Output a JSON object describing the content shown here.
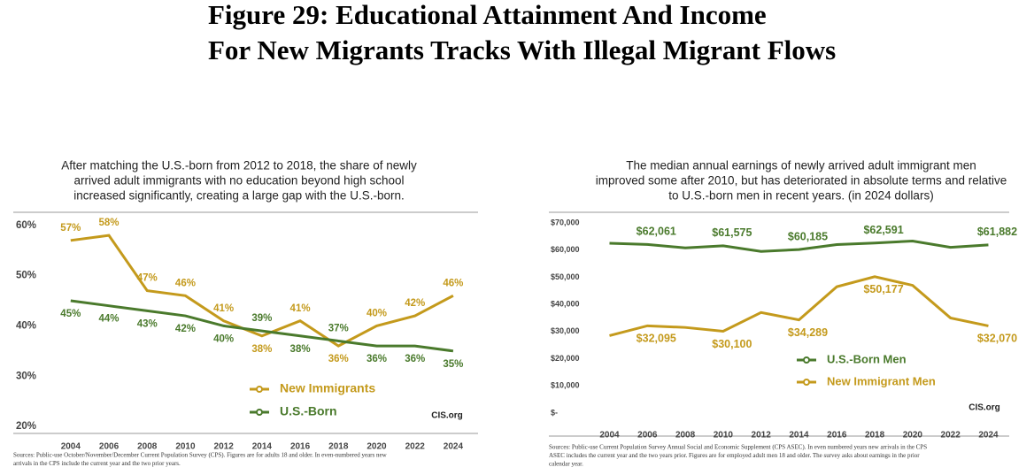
{
  "title": [
    "Figure 29: Educational Attainment And Income",
    "For New Migrants Tracks With Illegal Migrant Flows"
  ],
  "chart_data": [
    {
      "type": "line",
      "title": [
        "After matching the U.S.-born from 2012 to 2018, the share of newly",
        "arrived adult immigrants with no education beyond high school",
        "increased significantly, creating a large gap with the U.S.-born."
      ],
      "x": [
        2004,
        2006,
        2008,
        2010,
        2012,
        2014,
        2016,
        2018,
        2020,
        2022,
        2024
      ],
      "xlim": [
        2001,
        2025.3
      ],
      "xticks": [
        2004,
        2006,
        2008,
        2010,
        2012,
        2014,
        2016,
        2018,
        2020,
        2022,
        2024
      ],
      "ylim": [
        18.6,
        62.6
      ],
      "yticks": [
        {
          "value": 20,
          "label": "20%"
        },
        {
          "value": 30,
          "label": "30%"
        },
        {
          "value": 40,
          "label": "40%"
        },
        {
          "value": 50,
          "label": "50%"
        },
        {
          "value": 60,
          "label": "60%"
        }
      ],
      "series": [
        {
          "name": "New Immigrants",
          "color": "#c49a1c",
          "values": [
            57,
            58,
            47,
            46,
            41,
            38,
            41,
            36,
            40,
            42,
            46
          ],
          "value_labels": [
            "57%",
            "58%",
            "47%",
            "46%",
            "41%",
            "38%",
            "41%",
            "36%",
            "40%",
            "42%",
            "46%"
          ]
        },
        {
          "name": "U.S.-Born",
          "color": "#4a7a2c",
          "values": [
            45,
            44,
            43,
            42,
            40,
            39,
            38,
            37,
            36,
            36,
            35
          ],
          "value_labels": [
            "45%",
            "44%",
            "43%",
            "42%",
            "40%",
            "39%",
            "38%",
            "37%",
            "36%",
            "36%",
            "35%"
          ]
        }
      ],
      "annotation": "CIS.org",
      "source": [
        "Sources: Public-use October/November/December Current Population Survey (CPS). Figures are for adults 18 and older. In even-numbered years new",
        "arrivals in the CPS include the current year and the two prior years."
      ]
    },
    {
      "type": "line",
      "title": [
        "The median annual earnings of newly arrived adult immigrant men",
        "improved some after 2010, but has deteriorated in absolute terms and relative",
        "to U.S.-born men in recent years. (in 2024 dollars)"
      ],
      "x": [
        2004,
        2006,
        2008,
        2010,
        2012,
        2014,
        2016,
        2018,
        2020,
        2022,
        2024
      ],
      "xlim": [
        2000.8,
        2025.1
      ],
      "xticks": [
        2004,
        2006,
        2008,
        2010,
        2012,
        2014,
        2016,
        2018,
        2020,
        2022,
        2024
      ],
      "ylim": [
        -8500,
        73900
      ],
      "yticks": [
        {
          "value": 0,
          "label": "$-"
        },
        {
          "value": 10000,
          "label": "$10,000"
        },
        {
          "value": 20000,
          "label": "$20,000"
        },
        {
          "value": 30000,
          "label": "$30,000"
        },
        {
          "value": 40000,
          "label": "$40,000"
        },
        {
          "value": 50000,
          "label": "$50,000"
        },
        {
          "value": 60000,
          "label": "$60,000"
        },
        {
          "value": 70000,
          "label": "$70,000"
        }
      ],
      "series": [
        {
          "name": "U.S.-Born Men",
          "color": "#4a7a2c",
          "values": [
            62500,
            62061,
            60800,
            61575,
            59500,
            60185,
            62000,
            62591,
            63300,
            61000,
            61882
          ],
          "value_labels": [
            null,
            "$62,061",
            null,
            "$61,575",
            null,
            "$60,185",
            null,
            "$62,591",
            null,
            null,
            "$61,882"
          ]
        },
        {
          "name": "New Immigrant Men",
          "color": "#c49a1c",
          "values": [
            28500,
            32095,
            31500,
            30100,
            37000,
            34289,
            46500,
            50177,
            47000,
            35000,
            32070
          ],
          "value_labels": [
            null,
            "$32,095",
            null,
            "$30,100",
            null,
            "$34,289",
            null,
            "$50,177",
            null,
            null,
            "$32,070"
          ]
        }
      ],
      "annotation": "CIS.org",
      "source": [
        "Sources: Public-use Current Population Survey Annual Social and Economic Supplement (CPS ASEC). In even numbered years new arrivals in the CPS",
        "ASEC includes the current year and the two years prior.  Figures are for employed adult men 18 and older. The survey asks about earnings in the prior",
        "calendar year."
      ]
    }
  ]
}
